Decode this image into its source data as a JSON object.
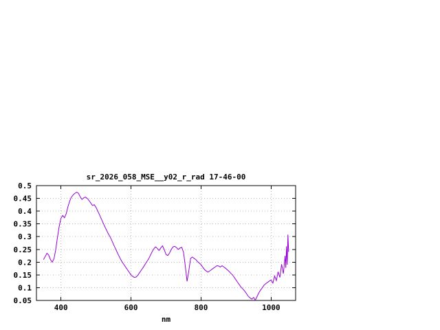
{
  "chart_data": {
    "type": "line",
    "title": "sr_2026_058_MSE__y02_r_rad 17-46-00",
    "xlabel": "nm",
    "ylabel": "",
    "xlim": [
      330,
      1070
    ],
    "ylim": [
      0.05,
      0.5
    ],
    "xticks": [
      400,
      600,
      800,
      1000
    ],
    "yticks": [
      0.05,
      0.1,
      0.15,
      0.2,
      0.25,
      0.3,
      0.35,
      0.4,
      0.45,
      0.5
    ],
    "grid": true,
    "legend": "none",
    "line_color": "#9400d3",
    "x": [
      350,
      355,
      360,
      365,
      370,
      375,
      380,
      385,
      390,
      395,
      400,
      405,
      410,
      415,
      420,
      425,
      430,
      435,
      440,
      445,
      450,
      455,
      460,
      465,
      470,
      475,
      480,
      485,
      490,
      495,
      500,
      505,
      510,
      515,
      520,
      525,
      530,
      535,
      540,
      545,
      550,
      555,
      560,
      565,
      570,
      575,
      580,
      585,
      590,
      595,
      600,
      605,
      610,
      615,
      620,
      625,
      630,
      635,
      640,
      645,
      650,
      655,
      660,
      665,
      670,
      675,
      680,
      685,
      690,
      695,
      700,
      705,
      710,
      715,
      720,
      725,
      730,
      735,
      740,
      745,
      750,
      755,
      760,
      765,
      770,
      775,
      780,
      785,
      790,
      795,
      800,
      805,
      810,
      815,
      820,
      825,
      830,
      835,
      840,
      845,
      850,
      855,
      860,
      865,
      870,
      875,
      880,
      885,
      890,
      895,
      900,
      905,
      910,
      915,
      920,
      925,
      930,
      935,
      940,
      945,
      950,
      955,
      960,
      965,
      970,
      975,
      980,
      985,
      990,
      995,
      1000,
      1005,
      1010,
      1015,
      1020,
      1025,
      1030,
      1035,
      1040,
      1042,
      1044,
      1046,
      1048,
      1050
    ],
    "values": [
      0.21,
      0.222,
      0.235,
      0.228,
      0.21,
      0.2,
      0.213,
      0.248,
      0.298,
      0.34,
      0.372,
      0.383,
      0.374,
      0.39,
      0.418,
      0.44,
      0.455,
      0.464,
      0.47,
      0.474,
      0.47,
      0.456,
      0.446,
      0.452,
      0.455,
      0.45,
      0.442,
      0.432,
      0.422,
      0.425,
      0.415,
      0.4,
      0.386,
      0.37,
      0.355,
      0.34,
      0.326,
      0.312,
      0.3,
      0.286,
      0.27,
      0.255,
      0.24,
      0.226,
      0.212,
      0.2,
      0.19,
      0.18,
      0.17,
      0.16,
      0.15,
      0.144,
      0.14,
      0.142,
      0.15,
      0.16,
      0.17,
      0.18,
      0.191,
      0.202,
      0.212,
      0.226,
      0.24,
      0.252,
      0.26,
      0.254,
      0.246,
      0.256,
      0.264,
      0.248,
      0.23,
      0.226,
      0.236,
      0.25,
      0.26,
      0.262,
      0.257,
      0.25,
      0.256,
      0.258,
      0.238,
      0.185,
      0.125,
      0.165,
      0.215,
      0.22,
      0.215,
      0.21,
      0.202,
      0.196,
      0.19,
      0.18,
      0.171,
      0.165,
      0.161,
      0.166,
      0.171,
      0.176,
      0.181,
      0.186,
      0.185,
      0.181,
      0.186,
      0.181,
      0.176,
      0.17,
      0.164,
      0.156,
      0.15,
      0.14,
      0.13,
      0.12,
      0.11,
      0.101,
      0.094,
      0.086,
      0.076,
      0.066,
      0.06,
      0.055,
      0.062,
      0.051,
      0.066,
      0.08,
      0.091,
      0.1,
      0.11,
      0.116,
      0.121,
      0.126,
      0.13,
      0.118,
      0.146,
      0.128,
      0.162,
      0.14,
      0.192,
      0.155,
      0.225,
      0.178,
      0.262,
      0.19,
      0.308,
      0.24
    ]
  }
}
